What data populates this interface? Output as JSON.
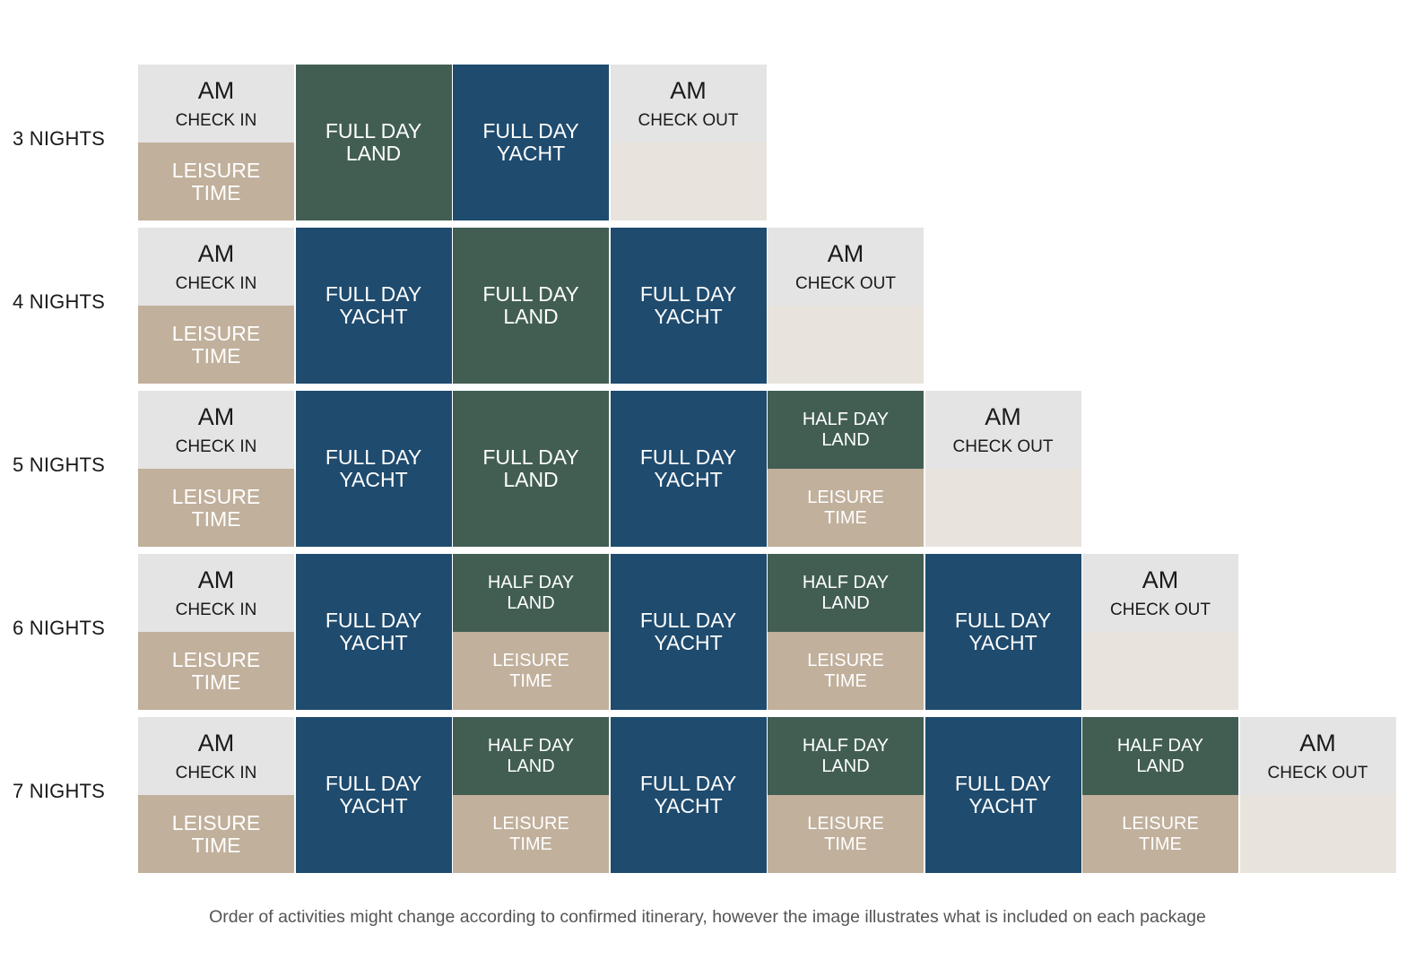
{
  "labels": {
    "am": "AM",
    "check_in": "CHECK IN",
    "check_out": "CHECK OUT",
    "leisure": [
      "LEISURE",
      "TIME"
    ],
    "full_land": [
      "FULL DAY",
      "LAND"
    ],
    "full_yacht": [
      "FULL DAY",
      "YACHT"
    ],
    "half_land": [
      "HALF DAY",
      "LAND"
    ]
  },
  "colors": {
    "am_gray": "#e5e4e4",
    "leisure_tan": "#c1b09c",
    "blank_cream": "#e8e4dd",
    "land_green": "#425e53",
    "yacht_blue": "#1f4b6e"
  },
  "packages": [
    {
      "label": "3  NIGHTS",
      "days": [
        "checkin",
        "full_land",
        "full_yacht",
        "checkout"
      ]
    },
    {
      "label": "4  NIGHTS",
      "days": [
        "checkin",
        "full_yacht",
        "full_land",
        "full_yacht",
        "checkout"
      ]
    },
    {
      "label": "5  NIGHTS",
      "days": [
        "checkin",
        "full_yacht",
        "full_land",
        "full_yacht",
        "half_land",
        "checkout"
      ]
    },
    {
      "label": "6  NIGHTS",
      "days": [
        "checkin",
        "full_yacht",
        "half_land",
        "full_yacht",
        "half_land",
        "full_yacht",
        "checkout"
      ]
    },
    {
      "label": "7  NIGHTS",
      "days": [
        "checkin",
        "full_yacht",
        "half_land",
        "full_yacht",
        "half_land",
        "full_yacht",
        "half_land",
        "checkout"
      ]
    }
  ],
  "caption": "Order of activities might change according to confirmed itinerary, however the image illustrates what is included on each package"
}
